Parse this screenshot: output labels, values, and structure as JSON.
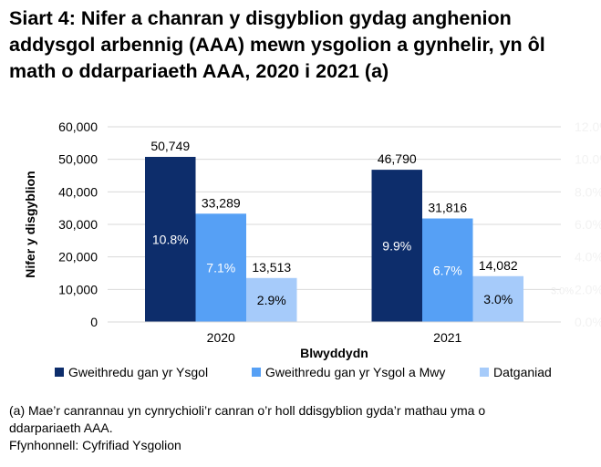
{
  "title": "Siart 4: Nifer a chanran y disgyblion gydag anghenion addysgol arbennig (AAA) mewn ysgolion a gynhelir, yn ôl math o ddarpariaeth AAA, 2020 i 2021 (a)",
  "footnote": "(a) Mae’r canrannau yn cynrychioli’r canran o’r holl ddisgyblion gyda’r mathau yma o ddarpariaeth AAA.",
  "source": "Ffynhonnell: Cyfrifiad Ysgolion",
  "chart_data": {
    "type": "bar",
    "title": "Siart 4: Nifer a chanran y disgyblion gydag anghenion addysgol arbennig (AAA) mewn ysgolion a gynhelir, yn ôl math o ddarpariaeth AAA, 2020 i 2021 (a)",
    "xlabel": "Blwyddydn",
    "ylabel": "Nifer y disgyblion",
    "categories": [
      "2020",
      "2021"
    ],
    "ylim": [
      0,
      60000
    ],
    "yticks": [
      "0",
      "10,000",
      "20,000",
      "30,000",
      "40,000",
      "50,000",
      "60,000"
    ],
    "y2lim": [
      0,
      12
    ],
    "y2ticks": [
      "0.0%",
      "2.0%",
      "4.0%",
      "6.0%",
      "8.0%",
      "10.0%",
      "12.0%"
    ],
    "y2_stray_label": "3.0%",
    "grid": true,
    "legend": "bottom",
    "series": [
      {
        "name": "Gweithredu gan yr Ysgol",
        "values": [
          50749,
          46790
        ],
        "labels": [
          "50,749",
          "46,790"
        ],
        "percent_labels": [
          "10.8%",
          "9.9%"
        ],
        "color": "#0d2d6b"
      },
      {
        "name": "Gweithredu gan yr Ysgol a Mwy",
        "values": [
          33289,
          31816
        ],
        "labels": [
          "33,289",
          "31,816"
        ],
        "percent_labels": [
          "7.1%",
          "6.7%"
        ],
        "color": "#56a0f5"
      },
      {
        "name": "Datganiad",
        "values": [
          13513,
          14082
        ],
        "labels": [
          "13,513",
          "14,082"
        ],
        "percent_labels": [
          "2.9%",
          "3.0%"
        ],
        "color": "#a6cbfa"
      }
    ]
  }
}
